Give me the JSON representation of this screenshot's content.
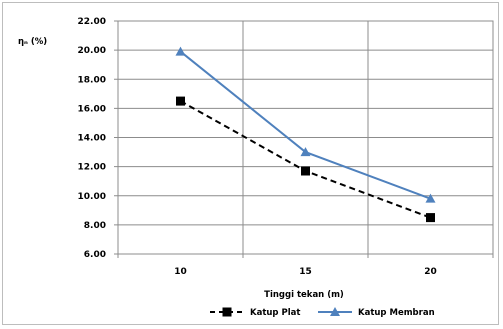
{
  "chart_data": {
    "type": "line",
    "title": "",
    "ylabel": "ηₙ (%)",
    "xlabel": "Tinggi tekan (m)",
    "categories": [
      "10",
      "15",
      "20"
    ],
    "yticks": [
      "22.00",
      "20.00",
      "18.00",
      "16.00",
      "14.00",
      "12.00",
      "10.00",
      "8.00",
      "6.00"
    ],
    "ylim": [
      6,
      22
    ],
    "grid": true,
    "legend_position": "bottom",
    "series": [
      {
        "name": "Katup Plat",
        "values": [
          16.5,
          11.7,
          8.5
        ],
        "color": "#000000",
        "dash": "dashed",
        "marker": "square"
      },
      {
        "name": "Katup Membran",
        "values": [
          19.9,
          13.0,
          9.8
        ],
        "color": "#4f81bd",
        "dash": "solid",
        "marker": "triangle"
      }
    ]
  }
}
